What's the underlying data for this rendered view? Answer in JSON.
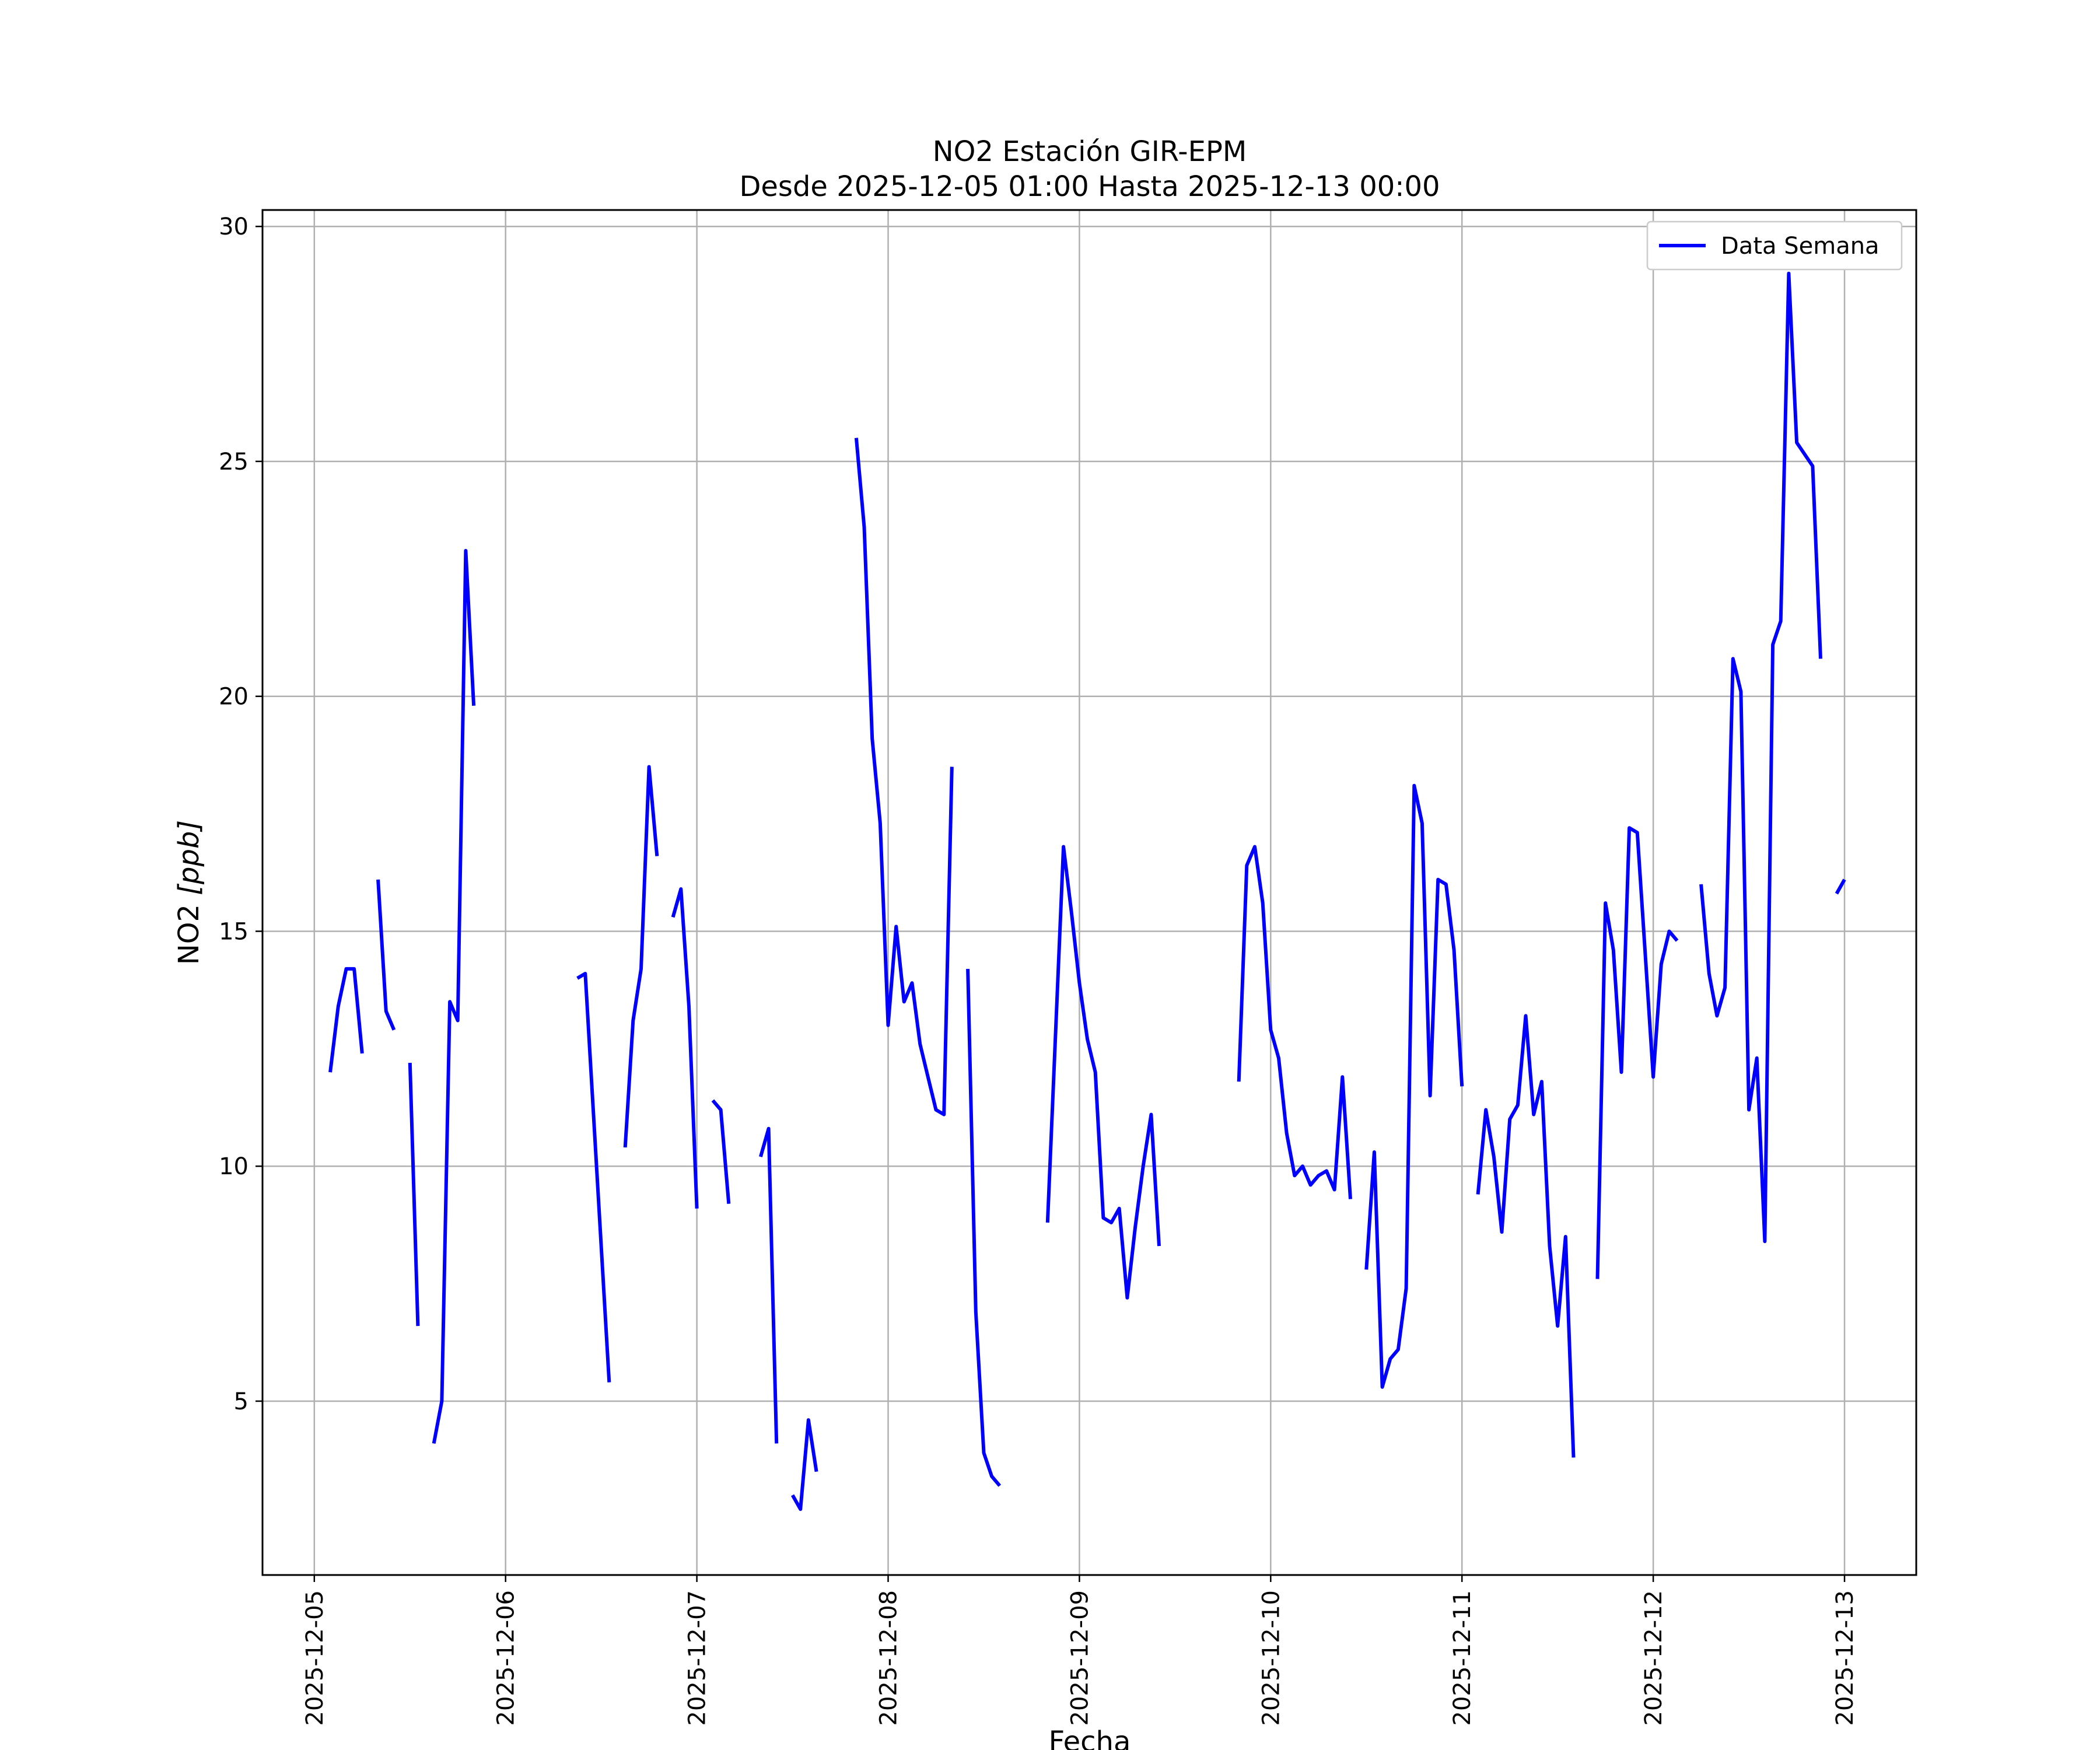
{
  "chart_data": {
    "type": "line",
    "title": "NO2 Estación GIR-EPM",
    "subtitle": "Desde 2025-12-05 01:00 Hasta 2025-12-13 00:00",
    "xlabel": "Fecha",
    "ylabel_main": "NO2 ",
    "ylabel_math": "[ppb]",
    "x_ticks": [
      "2025-12-05",
      "2025-12-06",
      "2025-12-07",
      "2025-12-08",
      "2025-12-09",
      "2025-12-10",
      "2025-12-11",
      "2025-12-12",
      "2025-12-13"
    ],
    "y_ticks": [
      5,
      10,
      15,
      20,
      25,
      30
    ],
    "xlim": [
      "2025-12-04 17:30",
      "2025-12-13 09:00"
    ],
    "ylim": [
      1.3,
      30.35
    ],
    "grid": true,
    "legend_position": "top-right",
    "series": [
      {
        "name": "Data Semana",
        "color": "#0000ff",
        "segments": [
          [
            [
              "2025-12-05 02:00",
              12.0
            ],
            [
              "2025-12-05 03:00",
              13.4
            ],
            [
              "2025-12-05 04:00",
              14.2
            ],
            [
              "2025-12-05 05:00",
              14.2
            ],
            [
              "2025-12-05 06:00",
              12.4
            ]
          ],
          [
            [
              "2025-12-05 08:00",
              16.1
            ],
            [
              "2025-12-05 09:00",
              13.3
            ],
            [
              "2025-12-05 10:00",
              12.9
            ]
          ],
          [
            [
              "2025-12-05 12:00",
              12.2
            ],
            [
              "2025-12-05 13:00",
              6.6
            ]
          ],
          [
            [
              "2025-12-05 15:00",
              4.1
            ],
            [
              "2025-12-05 16:00",
              5.0
            ],
            [
              "2025-12-05 17:00",
              13.5
            ],
            [
              "2025-12-05 18:00",
              13.1
            ],
            [
              "2025-12-05 19:00",
              23.1
            ],
            [
              "2025-12-05 20:00",
              19.8
            ]
          ],
          [
            [
              "2025-12-06 09:00",
              14.0
            ],
            [
              "2025-12-06 10:00",
              14.1
            ],
            [
              "2025-12-06 13:00",
              5.4
            ]
          ],
          [
            [
              "2025-12-06 15:00",
              10.4
            ],
            [
              "2025-12-06 16:00",
              13.1
            ],
            [
              "2025-12-06 17:00",
              14.2
            ],
            [
              "2025-12-06 18:00",
              18.5
            ],
            [
              "2025-12-06 19:00",
              16.6
            ]
          ],
          [
            [
              "2025-12-06 21:00",
              15.3
            ],
            [
              "2025-12-06 22:00",
              15.9
            ],
            [
              "2025-12-06 23:00",
              13.4
            ],
            [
              "2025-12-07 00:00",
              9.1
            ]
          ],
          [
            [
              "2025-12-07 02:00",
              11.4
            ],
            [
              "2025-12-07 03:00",
              11.2
            ],
            [
              "2025-12-07 04:00",
              9.2
            ]
          ],
          [
            [
              "2025-12-07 08:00",
              10.2
            ],
            [
              "2025-12-07 09:00",
              10.8
            ],
            [
              "2025-12-07 10:00",
              4.1
            ]
          ],
          [
            [
              "2025-12-07 12:00",
              3.0
            ],
            [
              "2025-12-07 13:00",
              2.7
            ],
            [
              "2025-12-07 14:00",
              4.6
            ],
            [
              "2025-12-07 15:00",
              3.5
            ]
          ],
          [
            [
              "2025-12-07 20:00",
              25.5
            ],
            [
              "2025-12-07 21:00",
              23.6
            ],
            [
              "2025-12-07 22:00",
              19.1
            ],
            [
              "2025-12-07 23:00",
              17.3
            ],
            [
              "2025-12-08 00:00",
              13.0
            ],
            [
              "2025-12-08 01:00",
              15.1
            ],
            [
              "2025-12-08 02:00",
              13.5
            ],
            [
              "2025-12-08 03:00",
              13.9
            ],
            [
              "2025-12-08 04:00",
              12.6
            ],
            [
              "2025-12-08 05:00",
              11.9
            ],
            [
              "2025-12-08 06:00",
              11.2
            ],
            [
              "2025-12-08 07:00",
              11.1
            ],
            [
              "2025-12-08 08:00",
              18.5
            ]
          ],
          [
            [
              "2025-12-08 10:00",
              14.2
            ],
            [
              "2025-12-08 11:00",
              6.9
            ],
            [
              "2025-12-08 12:00",
              3.9
            ],
            [
              "2025-12-08 13:00",
              3.4
            ],
            [
              "2025-12-08 14:00",
              3.2
            ]
          ],
          [
            [
              "2025-12-08 20:00",
              8.8
            ],
            [
              "2025-12-08 22:00",
              16.8
            ],
            [
              "2025-12-08 23:00",
              15.4
            ],
            [
              "2025-12-09 00:00",
              13.9
            ],
            [
              "2025-12-09 01:00",
              12.7
            ],
            [
              "2025-12-09 02:00",
              12.0
            ],
            [
              "2025-12-09 03:00",
              8.9
            ],
            [
              "2025-12-09 04:00",
              8.8
            ],
            [
              "2025-12-09 05:00",
              9.1
            ],
            [
              "2025-12-09 06:00",
              7.2
            ],
            [
              "2025-12-09 07:00",
              8.7
            ],
            [
              "2025-12-09 08:00",
              10.0
            ],
            [
              "2025-12-09 09:00",
              11.1
            ],
            [
              "2025-12-09 10:00",
              8.3
            ]
          ],
          [
            [
              "2025-12-09 20:00",
              11.8
            ],
            [
              "2025-12-09 21:00",
              16.4
            ],
            [
              "2025-12-09 22:00",
              16.8
            ],
            [
              "2025-12-09 23:00",
              15.6
            ],
            [
              "2025-12-10 00:00",
              12.9
            ],
            [
              "2025-12-10 01:00",
              12.3
            ],
            [
              "2025-12-10 02:00",
              10.7
            ],
            [
              "2025-12-10 03:00",
              9.8
            ],
            [
              "2025-12-10 04:00",
              10.0
            ],
            [
              "2025-12-10 05:00",
              9.6
            ],
            [
              "2025-12-10 06:00",
              9.8
            ],
            [
              "2025-12-10 07:00",
              9.9
            ],
            [
              "2025-12-10 08:00",
              9.5
            ],
            [
              "2025-12-10 09:00",
              11.9
            ],
            [
              "2025-12-10 10:00",
              9.3
            ]
          ],
          [
            [
              "2025-12-10 12:00",
              7.8
            ],
            [
              "2025-12-10 13:00",
              10.3
            ],
            [
              "2025-12-10 14:00",
              5.3
            ],
            [
              "2025-12-10 15:00",
              5.9
            ],
            [
              "2025-12-10 16:00",
              6.1
            ],
            [
              "2025-12-10 17:00",
              7.4
            ],
            [
              "2025-12-10 18:00",
              18.1
            ],
            [
              "2025-12-10 19:00",
              17.3
            ],
            [
              "2025-12-10 20:00",
              11.5
            ],
            [
              "2025-12-10 21:00",
              16.1
            ],
            [
              "2025-12-10 22:00",
              16.0
            ],
            [
              "2025-12-10 23:00",
              14.6
            ],
            [
              "2025-12-11 00:00",
              11.7
            ]
          ],
          [
            [
              "2025-12-11 02:00",
              9.4
            ],
            [
              "2025-12-11 03:00",
              11.2
            ],
            [
              "2025-12-11 04:00",
              10.2
            ],
            [
              "2025-12-11 05:00",
              8.6
            ],
            [
              "2025-12-11 06:00",
              11.0
            ],
            [
              "2025-12-11 07:00",
              11.3
            ],
            [
              "2025-12-11 08:00",
              13.2
            ],
            [
              "2025-12-11 09:00",
              11.1
            ],
            [
              "2025-12-11 10:00",
              11.8
            ],
            [
              "2025-12-11 11:00",
              8.3
            ],
            [
              "2025-12-11 12:00",
              6.6
            ],
            [
              "2025-12-11 13:00",
              8.5
            ],
            [
              "2025-12-11 14:00",
              3.8
            ]
          ],
          [
            [
              "2025-12-11 17:00",
              7.6
            ],
            [
              "2025-12-11 18:00",
              15.6
            ],
            [
              "2025-12-11 19:00",
              14.6
            ],
            [
              "2025-12-11 20:00",
              12.0
            ],
            [
              "2025-12-11 21:00",
              17.2
            ],
            [
              "2025-12-11 22:00",
              17.1
            ],
            [
              "2025-12-11 23:00",
              14.5
            ],
            [
              "2025-12-12 00:00",
              11.9
            ],
            [
              "2025-12-12 01:00",
              14.3
            ],
            [
              "2025-12-12 02:00",
              15.0
            ],
            [
              "2025-12-12 03:00",
              14.8
            ]
          ],
          [
            [
              "2025-12-12 06:00",
              16.0
            ],
            [
              "2025-12-12 07:00",
              14.1
            ],
            [
              "2025-12-12 08:00",
              13.2
            ],
            [
              "2025-12-12 09:00",
              13.8
            ],
            [
              "2025-12-12 10:00",
              20.8
            ],
            [
              "2025-12-12 11:00",
              20.1
            ],
            [
              "2025-12-12 12:00",
              11.2
            ],
            [
              "2025-12-12 13:00",
              12.3
            ],
            [
              "2025-12-12 14:00",
              8.4
            ],
            [
              "2025-12-12 15:00",
              21.1
            ],
            [
              "2025-12-12 16:00",
              21.6
            ],
            [
              "2025-12-12 17:00",
              29.0
            ],
            [
              "2025-12-12 18:00",
              25.4
            ],
            [
              "2025-12-12 20:00",
              24.9
            ],
            [
              "2025-12-12 21:00",
              20.8
            ]
          ],
          [
            [
              "2025-12-12 23:00",
              15.8
            ],
            [
              "2025-12-13 00:00",
              16.1
            ]
          ]
        ]
      }
    ]
  }
}
